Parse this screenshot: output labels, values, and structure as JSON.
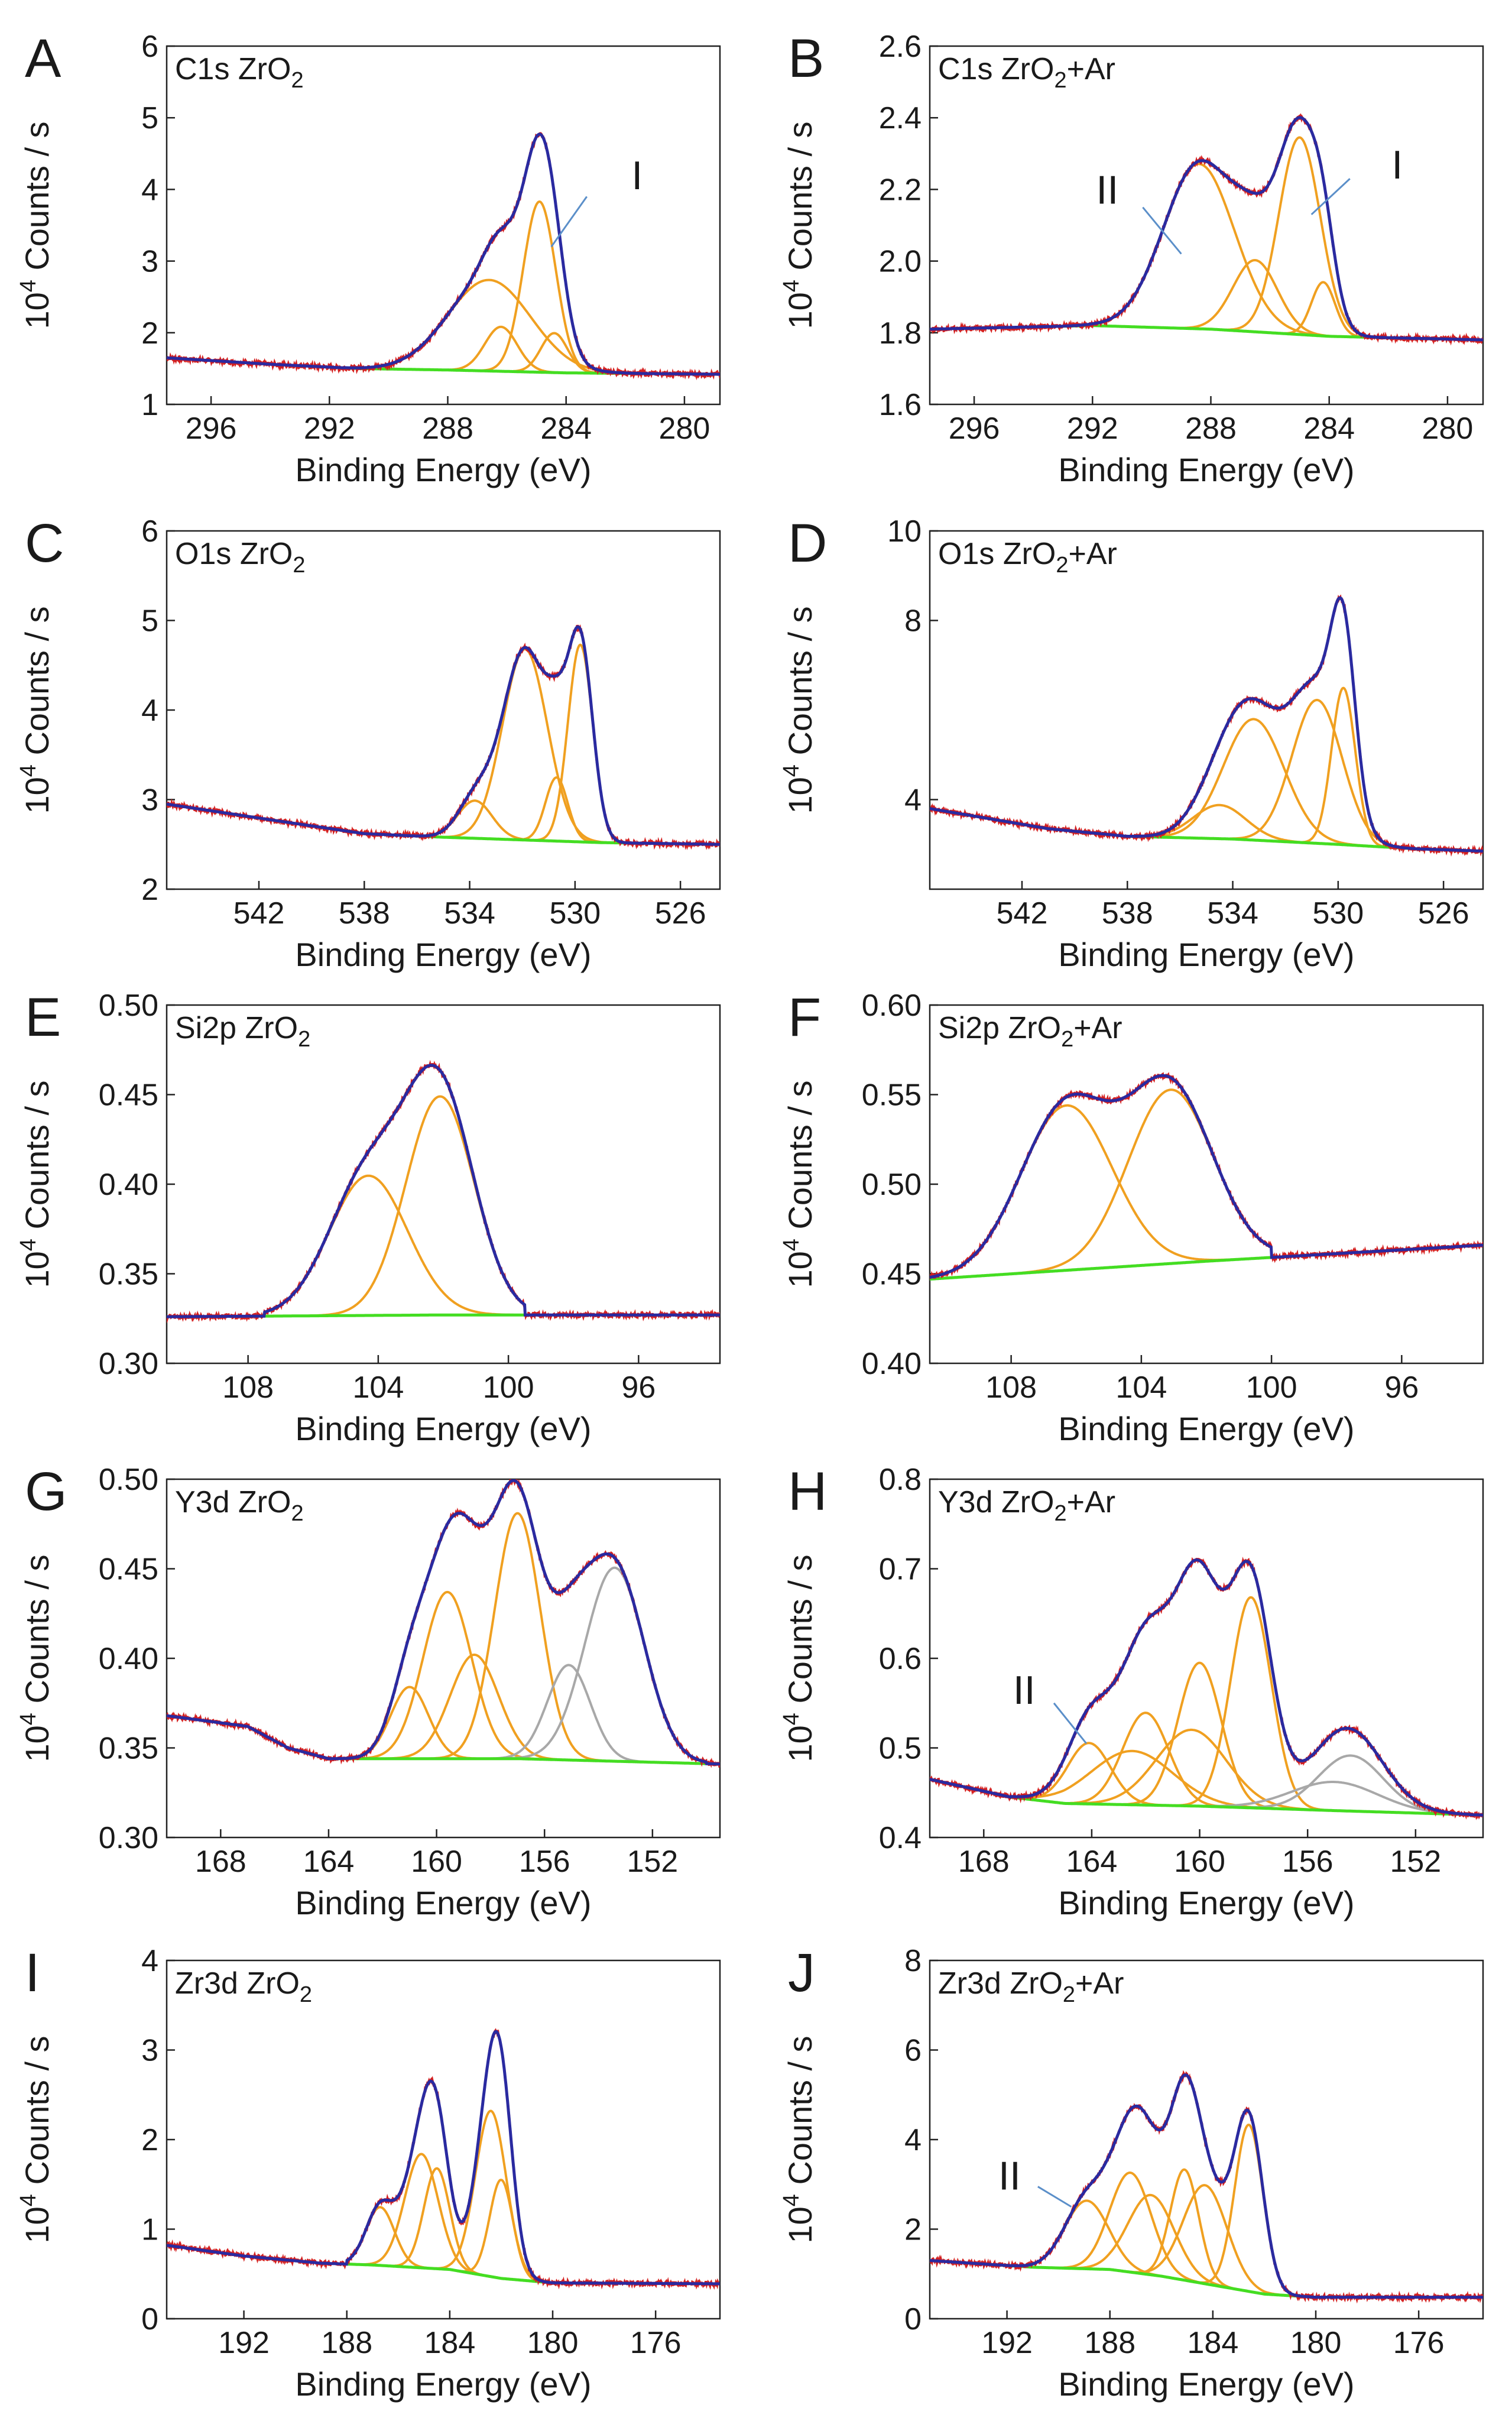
{
  "figure": {
    "colors": {
      "envelope": "#2a2aa0",
      "raw": "#d42020",
      "component": "#f0a020",
      "component_gray": "#a8a8a8",
      "background": "#44dd22",
      "frame": "#222222",
      "annotation_line": "#5b8fc9"
    }
  },
  "chart_data": [
    {
      "letter": "A",
      "title": "C1s  ZrO",
      "subscript": "2",
      "suffix": "",
      "type": "line",
      "xlabel": "Binding Energy (eV)",
      "ylabel_main": "Counts / s",
      "ylabel_base": "10",
      "ylabel_exp": "4",
      "xlim": [
        297.5,
        278.8
      ],
      "ylim": [
        1,
        6
      ],
      "xticks": [
        296,
        292,
        288,
        284,
        280
      ],
      "xtick_labels": [
        "296",
        "292",
        "288",
        "284",
        "280"
      ],
      "yticks": [
        1,
        2,
        3,
        4,
        5,
        6
      ],
      "ytick_labels": [
        "1",
        "2",
        "3",
        "4",
        "5",
        "6"
      ],
      "background": {
        "points": [
          [
            297.5,
            1.65
          ],
          [
            294,
            1.56
          ],
          [
            291,
            1.5
          ],
          [
            288,
            1.48
          ],
          [
            284,
            1.44
          ],
          [
            278.8,
            1.42
          ]
        ]
      },
      "background_start": 291.5,
      "background_end": 281.5,
      "components": [
        {
          "center": 286.6,
          "height": 1.27,
          "width": 1.4,
          "color": "orange"
        },
        {
          "center": 286.2,
          "height": 0.62,
          "width": 0.55,
          "color": "orange"
        },
        {
          "center": 284.9,
          "height": 2.38,
          "width": 0.55,
          "color": "orange"
        },
        {
          "center": 284.4,
          "height": 0.55,
          "width": 0.45,
          "color": "orange"
        }
      ],
      "annotations": [
        {
          "label": "I",
          "x": 283.3,
          "y": 3.9,
          "ax": 284.5,
          "ay": 3.2,
          "tx": 281.6,
          "ty": 4.2
        }
      ]
    },
    {
      "letter": "B",
      "title": "C1s  ZrO",
      "subscript": "2",
      "suffix": "+Ar",
      "type": "line",
      "xlabel": "Binding Energy (eV)",
      "ylabel_main": "Counts / s",
      "ylabel_base": "10",
      "ylabel_exp": "4",
      "xlim": [
        297.5,
        278.8
      ],
      "ylim": [
        1.6,
        2.6
      ],
      "xticks": [
        296,
        292,
        288,
        284,
        280
      ],
      "xtick_labels": [
        "296",
        "292",
        "288",
        "284",
        "280"
      ],
      "yticks": [
        1.6,
        1.8,
        2.0,
        2.2,
        2.4,
        2.6
      ],
      "ytick_labels": [
        "1.6",
        "1.8",
        "2.0",
        "2.2",
        "2.4",
        "2.6"
      ],
      "background": {
        "points": [
          [
            297.5,
            1.81
          ],
          [
            292,
            1.82
          ],
          [
            288,
            1.81
          ],
          [
            284,
            1.79
          ],
          [
            278.8,
            1.78
          ]
        ]
      },
      "background_start": 293,
      "background_end": 281.5,
      "components": [
        {
          "center": 288.4,
          "height": 0.46,
          "width": 1.2,
          "color": "orange"
        },
        {
          "center": 286.5,
          "height": 0.2,
          "width": 0.75,
          "color": "orange"
        },
        {
          "center": 285.0,
          "height": 0.55,
          "width": 0.7,
          "color": "orange"
        },
        {
          "center": 284.2,
          "height": 0.15,
          "width": 0.4,
          "color": "orange"
        }
      ],
      "annotations": [
        {
          "label": "II",
          "x": 290.3,
          "y": 2.15,
          "ax": 289.0,
          "ay": 2.02,
          "tx": 291.5,
          "ty": 2.2
        },
        {
          "label": "I",
          "x": 283.3,
          "y": 2.23,
          "ax": 284.6,
          "ay": 2.13,
          "tx": 281.7,
          "ty": 2.27
        }
      ]
    },
    {
      "letter": "C",
      "title": "O1s  ZrO",
      "subscript": "2",
      "suffix": "",
      "type": "line",
      "xlabel": "Binding Energy (eV)",
      "ylabel_main": "Counts / s",
      "ylabel_base": "10",
      "ylabel_exp": "4",
      "xlim": [
        545.5,
        524.5
      ],
      "ylim": [
        2,
        6
      ],
      "xticks": [
        542,
        538,
        534,
        530,
        526
      ],
      "xtick_labels": [
        "542",
        "538",
        "534",
        "530",
        "526"
      ],
      "yticks": [
        2,
        3,
        4,
        5,
        6
      ],
      "ytick_labels": [
        "2",
        "3",
        "4",
        "5",
        "6"
      ],
      "background": {
        "points": [
          [
            545.5,
            2.95
          ],
          [
            541,
            2.75
          ],
          [
            538,
            2.62
          ],
          [
            535,
            2.58
          ],
          [
            532,
            2.55
          ],
          [
            529,
            2.52
          ],
          [
            524.5,
            2.5
          ]
        ]
      },
      "background_start": 536,
      "background_end": 527.5,
      "components": [
        {
          "center": 533.8,
          "height": 0.42,
          "width": 0.65,
          "color": "orange"
        },
        {
          "center": 531.9,
          "height": 2.13,
          "width": 0.85,
          "color": "orange"
        },
        {
          "center": 530.7,
          "height": 0.71,
          "width": 0.42,
          "color": "orange"
        },
        {
          "center": 529.8,
          "height": 2.2,
          "width": 0.47,
          "color": "orange"
        }
      ],
      "annotations": []
    },
    {
      "letter": "D",
      "title": "O1s  ZrO",
      "subscript": "2",
      "suffix": "+Ar",
      "type": "line",
      "xlabel": "Binding Energy (eV)",
      "ylabel_main": "Counts / s",
      "ylabel_base": "10",
      "ylabel_exp": "4",
      "xlim": [
        545.5,
        524.5
      ],
      "ylim": [
        2,
        10
      ],
      "xticks": [
        542,
        538,
        534,
        530,
        526
      ],
      "xtick_labels": [
        "542",
        "538",
        "534",
        "530",
        "526"
      ],
      "yticks": [
        4,
        8,
        10
      ],
      "ytick_labels": [
        "4",
        "8",
        "10"
      ],
      "background": {
        "points": [
          [
            545.5,
            3.8
          ],
          [
            541,
            3.35
          ],
          [
            538,
            3.18
          ],
          [
            534,
            3.12
          ],
          [
            530,
            3.0
          ],
          [
            527,
            2.9
          ],
          [
            524.5,
            2.85
          ]
        ]
      },
      "background_start": 538,
      "background_end": 527,
      "components": [
        {
          "center": 534.5,
          "height": 0.75,
          "width": 1.0,
          "color": "orange"
        },
        {
          "center": 533.2,
          "height": 2.7,
          "width": 1.15,
          "color": "orange"
        },
        {
          "center": 530.8,
          "height": 3.2,
          "width": 0.95,
          "color": "orange"
        },
        {
          "center": 529.8,
          "height": 3.5,
          "width": 0.45,
          "color": "orange"
        }
      ],
      "annotations": []
    },
    {
      "letter": "E",
      "title": "Si2p  ZrO",
      "subscript": "2",
      "suffix": "",
      "type": "line",
      "xlabel": "Binding Energy (eV)",
      "ylabel_main": "Counts / s",
      "ylabel_base": "10",
      "ylabel_exp": "4",
      "xlim": [
        110.5,
        93.5
      ],
      "ylim": [
        0.3,
        0.5
      ],
      "xticks": [
        108,
        104,
        100,
        96
      ],
      "xtick_labels": [
        "108",
        "104",
        "100",
        "96"
      ],
      "yticks": [
        0.3,
        0.35,
        0.4,
        0.45,
        0.5
      ],
      "ytick_labels": [
        "0.30",
        "0.35",
        "0.40",
        "0.45",
        "0.50"
      ],
      "background": {
        "points": [
          [
            110.5,
            0.326
          ],
          [
            102,
            0.327
          ],
          [
            93.5,
            0.327
          ]
        ]
      },
      "background_start": 107.5,
      "background_end": 99.5,
      "components": [
        {
          "center": 104.3,
          "height": 0.078,
          "width": 1.2,
          "color": "orange"
        },
        {
          "center": 102.1,
          "height": 0.122,
          "width": 1.05,
          "color": "orange"
        }
      ],
      "annotations": []
    },
    {
      "letter": "F",
      "title": "Si2p  ZrO",
      "subscript": "2",
      "suffix": "+Ar",
      "type": "line",
      "xlabel": "Binding Energy (eV)",
      "ylabel_main": "Counts / s",
      "ylabel_base": "10",
      "ylabel_exp": "4",
      "xlim": [
        110.5,
        93.5
      ],
      "ylim": [
        0.4,
        0.6
      ],
      "xticks": [
        108,
        104,
        100,
        96
      ],
      "xtick_labels": [
        "108",
        "104",
        "100",
        "96"
      ],
      "yticks": [
        0.4,
        0.45,
        0.5,
        0.55,
        0.6
      ],
      "ytick_labels": [
        "0.40",
        "0.45",
        "0.50",
        "0.55",
        "0.60"
      ],
      "background": {
        "points": [
          [
            110.5,
            0.447
          ],
          [
            102,
            0.457
          ],
          [
            93.5,
            0.466
          ]
        ]
      },
      "background_start": 110.5,
      "background_end": 100,
      "components": [
        {
          "center": 106.3,
          "height": 0.092,
          "width": 1.4,
          "color": "orange"
        },
        {
          "center": 103.1,
          "height": 0.097,
          "width": 1.3,
          "color": "orange"
        }
      ],
      "annotations": []
    },
    {
      "letter": "G",
      "title": "Y3d  ZrO",
      "subscript": "2",
      "suffix": "",
      "type": "line",
      "xlabel": "Binding Energy (eV)",
      "ylabel_main": "Counts / s",
      "ylabel_base": "10",
      "ylabel_exp": "4",
      "xlim": [
        170,
        149.5
      ],
      "ylim": [
        0.3,
        0.5
      ],
      "xticks": [
        168,
        164,
        160,
        156,
        152
      ],
      "xtick_labels": [
        "168",
        "164",
        "160",
        "156",
        "152"
      ],
      "yticks": [
        0.3,
        0.35,
        0.4,
        0.45,
        0.5
      ],
      "ytick_labels": [
        "0.30",
        "0.35",
        "0.40",
        "0.45",
        "0.50"
      ],
      "background": {
        "points": [
          [
            170,
            0.368
          ],
          [
            167,
            0.362
          ],
          [
            165.5,
            0.35
          ],
          [
            164,
            0.344
          ],
          [
            157,
            0.344
          ],
          [
            149.5,
            0.341
          ]
        ]
      },
      "background_start": 164,
      "background_end": 150,
      "components": [
        {
          "center": 161.0,
          "height": 0.04,
          "width": 0.7,
          "color": "orange"
        },
        {
          "center": 159.6,
          "height": 0.093,
          "width": 0.9,
          "color": "orange"
        },
        {
          "center": 158.6,
          "height": 0.058,
          "width": 0.9,
          "color": "orange"
        },
        {
          "center": 157.0,
          "height": 0.137,
          "width": 0.85,
          "color": "orange"
        },
        {
          "center": 155.1,
          "height": 0.053,
          "width": 0.8,
          "color": "gray"
        },
        {
          "center": 153.4,
          "height": 0.108,
          "width": 1.1,
          "color": "gray"
        }
      ],
      "annotations": []
    },
    {
      "letter": "H",
      "title": "Y3d  ZrO",
      "subscript": "2",
      "suffix": "+Ar",
      "type": "line",
      "xlabel": "Binding Energy (eV)",
      "ylabel_main": "Counts / s",
      "ylabel_base": "10",
      "ylabel_exp": "4",
      "xlim": [
        170,
        149.5
      ],
      "ylim": [
        0.4,
        0.8
      ],
      "xticks": [
        168,
        164,
        160,
        156,
        152
      ],
      "xtick_labels": [
        "168",
        "164",
        "160",
        "156",
        "152"
      ],
      "yticks": [
        0.4,
        0.5,
        0.6,
        0.7,
        0.8
      ],
      "ytick_labels": [
        "0.4",
        "0.5",
        "0.6",
        "0.7",
        "0.8"
      ],
      "background": {
        "points": [
          [
            170,
            0.465
          ],
          [
            167,
            0.445
          ],
          [
            165,
            0.438
          ],
          [
            160,
            0.435
          ],
          [
            155,
            0.43
          ],
          [
            149.5,
            0.425
          ]
        ]
      },
      "background_start": 167,
      "background_end": 150,
      "components": [
        {
          "center": 164.1,
          "height": 0.068,
          "width": 0.8,
          "color": "orange"
        },
        {
          "center": 162.5,
          "height": 0.06,
          "width": 1.5,
          "color": "orange"
        },
        {
          "center": 162.0,
          "height": 0.103,
          "width": 0.85,
          "color": "orange"
        },
        {
          "center": 160.3,
          "height": 0.085,
          "width": 1.3,
          "color": "orange"
        },
        {
          "center": 160.0,
          "height": 0.16,
          "width": 0.8,
          "color": "orange"
        },
        {
          "center": 158.1,
          "height": 0.235,
          "width": 0.75,
          "color": "orange"
        },
        {
          "center": 155.0,
          "height": 0.032,
          "width": 1.6,
          "color": "gray"
        },
        {
          "center": 154.4,
          "height": 0.062,
          "width": 1.2,
          "color": "gray"
        }
      ],
      "annotations": [
        {
          "label": "II",
          "x": 165.4,
          "y": 0.55,
          "ax": 164.2,
          "ay": 0.505,
          "tx": 166.5,
          "ty": 0.565
        }
      ]
    },
    {
      "letter": "I",
      "title": "Zr3d  ZrO",
      "subscript": "2",
      "suffix": "",
      "type": "line",
      "xlabel": "Binding Energy (eV)",
      "ylabel_main": "Counts / s",
      "ylabel_base": "10",
      "ylabel_exp": "4",
      "xlim": [
        195,
        173.5
      ],
      "ylim": [
        0,
        4
      ],
      "xticks": [
        192,
        188,
        184,
        180,
        176
      ],
      "xtick_labels": [
        "192",
        "188",
        "184",
        "180",
        "176"
      ],
      "yticks": [
        0,
        1,
        2,
        3,
        4
      ],
      "ytick_labels": [
        "0",
        "1",
        "2",
        "3",
        "4"
      ],
      "background": {
        "points": [
          [
            195,
            0.82
          ],
          [
            192,
            0.7
          ],
          [
            189,
            0.62
          ],
          [
            187,
            0.6
          ],
          [
            184,
            0.55
          ],
          [
            182,
            0.45
          ],
          [
            180,
            0.4
          ],
          [
            173.5,
            0.39
          ]
        ]
      },
      "background_start": 188,
      "background_end": 179.5,
      "components": [
        {
          "center": 186.7,
          "height": 0.65,
          "width": 0.55,
          "color": "orange"
        },
        {
          "center": 185.1,
          "height": 1.27,
          "width": 0.65,
          "color": "orange"
        },
        {
          "center": 184.5,
          "height": 1.12,
          "width": 0.5,
          "color": "orange"
        },
        {
          "center": 182.4,
          "height": 1.85,
          "width": 0.6,
          "color": "orange"
        },
        {
          "center": 182.0,
          "height": 1.1,
          "width": 0.45,
          "color": "orange"
        }
      ],
      "annotations": []
    },
    {
      "letter": "J",
      "title": "Zr3d  ZrO",
      "subscript": "2",
      "suffix": "+Ar",
      "type": "line",
      "xlabel": "Binding Energy (eV)",
      "ylabel_main": "Counts / s",
      "ylabel_base": "10",
      "ylabel_exp": "4",
      "xlim": [
        195,
        173.5
      ],
      "ylim": [
        0,
        8
      ],
      "xticks": [
        192,
        188,
        184,
        180,
        176
      ],
      "xtick_labels": [
        "192",
        "188",
        "184",
        "180",
        "176"
      ],
      "yticks": [
        0,
        2,
        4,
        6,
        8
      ],
      "ytick_labels": [
        "0",
        "2",
        "4",
        "6",
        "8"
      ],
      "background": {
        "points": [
          [
            195,
            1.3
          ],
          [
            191,
            1.15
          ],
          [
            188,
            1.1
          ],
          [
            186,
            0.95
          ],
          [
            184,
            0.75
          ],
          [
            182,
            0.55
          ],
          [
            180,
            0.48
          ],
          [
            173.5,
            0.48
          ]
        ]
      },
      "background_start": 193,
      "background_end": 179.5,
      "components": [
        {
          "center": 188.9,
          "height": 1.52,
          "width": 0.85,
          "color": "orange"
        },
        {
          "center": 187.2,
          "height": 2.22,
          "width": 0.8,
          "color": "orange"
        },
        {
          "center": 186.4,
          "height": 1.78,
          "width": 0.9,
          "color": "orange"
        },
        {
          "center": 185.1,
          "height": 2.47,
          "width": 0.55,
          "color": "orange"
        },
        {
          "center": 184.3,
          "height": 2.2,
          "width": 0.85,
          "color": "orange"
        },
        {
          "center": 182.6,
          "height": 3.72,
          "width": 0.55,
          "color": "orange"
        }
      ],
      "annotations": [
        {
          "label": "II",
          "x": 190.8,
          "y": 2.95,
          "ax": 189.5,
          "ay": 2.5,
          "tx": 191.9,
          "ty": 3.2
        }
      ]
    }
  ]
}
